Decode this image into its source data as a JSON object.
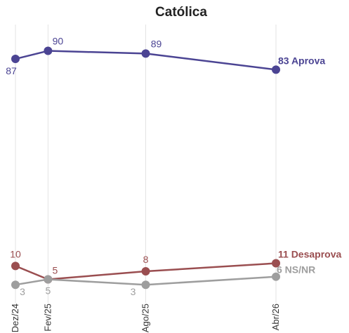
{
  "chart_data": {
    "type": "line",
    "title": "Católica",
    "xlabel": "",
    "ylabel": "",
    "ylim": [
      0,
      100
    ],
    "grid": "vertical",
    "legend": "none",
    "categories": [
      "Dez/24",
      "Fev/25",
      "Ago/25",
      "Abr/26"
    ],
    "dates": [
      "2024-12",
      "2025-02",
      "2025-08",
      "2026-04"
    ],
    "series": [
      {
        "name": "Aprova",
        "end_label": "83 Aprova",
        "color": "#4b4493",
        "values": [
          87,
          90,
          89,
          83
        ],
        "point_labels": [
          "87",
          "90",
          "89"
        ]
      },
      {
        "name": "Desaprova",
        "end_label": "11 Desaprova",
        "color": "#9a4e50",
        "values": [
          10,
          5,
          8,
          11
        ],
        "point_labels": [
          "10",
          "5",
          "8"
        ]
      },
      {
        "name": "NS/NR",
        "end_label": "6 NS/NR",
        "color": "#9e9e9e",
        "values": [
          3,
          5,
          3,
          6
        ],
        "point_labels": [
          "3",
          "5",
          "3"
        ]
      }
    ]
  }
}
